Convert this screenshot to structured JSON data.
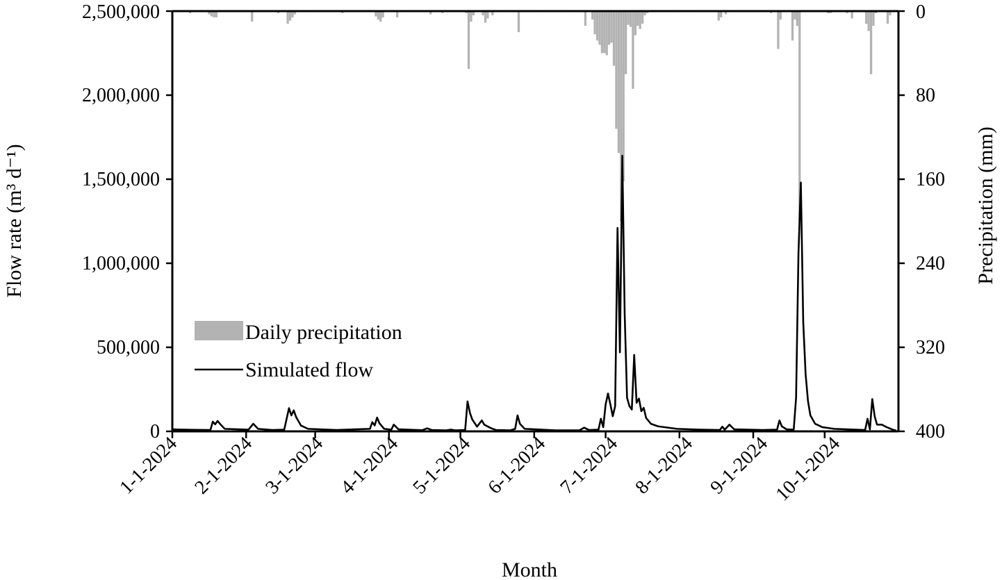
{
  "chart_data": {
    "type": "bar+line",
    "xlabel": "Month",
    "ylabel_left": "Flow rate (m³ d⁻¹)",
    "ylabel_right": "Precipitation (mm)",
    "x_start": "2024-01-01",
    "x_end": "2024-10-31",
    "ylim_left": [
      0,
      2500000
    ],
    "ylim_right": [
      0,
      400
    ],
    "right_axis_inverted": true,
    "legend_position": "left-center",
    "grid": false,
    "x_ticks": [
      "1-1-2024",
      "2-1-2024",
      "3-1-2024",
      "4-1-2024",
      "5-1-2024",
      "6-1-2024",
      "7-1-2024",
      "8-1-2024",
      "9-1-2024",
      "10-1-2024"
    ],
    "y_ticks_left": [
      "0",
      "500,000",
      "1,000,000",
      "1,500,000",
      "2,000,000",
      "2,500,000"
    ],
    "y_ticks_right": [
      "0",
      "80",
      "160",
      "240",
      "320",
      "400"
    ],
    "series": [
      {
        "name": "Daily precipitation",
        "type": "bar",
        "color": "#b3b3b3",
        "axis": "right",
        "points": [
          [
            "2024-01-03",
            1
          ],
          [
            "2024-01-06",
            1
          ],
          [
            "2024-01-08",
            2
          ],
          [
            "2024-01-13",
            1
          ],
          [
            "2024-01-16",
            3
          ],
          [
            "2024-01-17",
            5
          ],
          [
            "2024-01-18",
            6
          ],
          [
            "2024-01-19",
            6
          ],
          [
            "2024-02-03",
            10
          ],
          [
            "2024-02-14",
            2
          ],
          [
            "2024-02-18",
            12
          ],
          [
            "2024-02-19",
            9
          ],
          [
            "2024-02-20",
            6
          ],
          [
            "2024-02-21",
            3
          ],
          [
            "2024-02-22",
            1
          ],
          [
            "2024-02-26",
            1
          ],
          [
            "2024-03-12",
            2
          ],
          [
            "2024-03-26",
            5
          ],
          [
            "2024-03-27",
            8
          ],
          [
            "2024-03-28",
            10
          ],
          [
            "2024-03-29",
            6
          ],
          [
            "2024-04-04",
            6
          ],
          [
            "2024-04-08",
            1
          ],
          [
            "2024-04-18",
            3
          ],
          [
            "2024-04-23",
            2
          ],
          [
            "2024-04-28",
            1
          ],
          [
            "2024-05-03",
            2
          ],
          [
            "2024-05-04",
            55
          ],
          [
            "2024-05-05",
            10
          ],
          [
            "2024-05-06",
            4
          ],
          [
            "2024-05-10",
            4
          ],
          [
            "2024-05-11",
            11
          ],
          [
            "2024-05-12",
            7
          ],
          [
            "2024-05-14",
            4
          ],
          [
            "2024-05-16",
            1
          ],
          [
            "2024-05-24",
            1
          ],
          [
            "2024-05-25",
            20
          ],
          [
            "2024-06-02",
            1
          ],
          [
            "2024-06-17",
            1
          ],
          [
            "2024-06-22",
            14
          ],
          [
            "2024-06-25",
            8
          ],
          [
            "2024-06-26",
            22
          ],
          [
            "2024-06-27",
            28
          ],
          [
            "2024-06-28",
            32
          ],
          [
            "2024-06-29",
            40
          ],
          [
            "2024-06-30",
            40
          ],
          [
            "2024-07-01",
            42
          ],
          [
            "2024-07-02",
            32
          ],
          [
            "2024-07-03",
            30
          ],
          [
            "2024-07-04",
            52
          ],
          [
            "2024-07-05",
            112
          ],
          [
            "2024-07-06",
            135
          ],
          [
            "2024-07-07",
            200
          ],
          [
            "2024-07-08",
            162
          ],
          [
            "2024-07-09",
            60
          ],
          [
            "2024-07-10",
            13
          ],
          [
            "2024-07-11",
            15
          ],
          [
            "2024-07-12",
            74
          ],
          [
            "2024-07-13",
            23
          ],
          [
            "2024-07-14",
            14
          ],
          [
            "2024-07-15",
            17
          ],
          [
            "2024-07-16",
            12
          ],
          [
            "2024-07-17",
            4
          ],
          [
            "2024-07-18",
            2
          ],
          [
            "2024-07-20",
            1
          ],
          [
            "2024-07-25",
            1
          ],
          [
            "2024-08-02",
            1
          ],
          [
            "2024-08-07",
            1
          ],
          [
            "2024-08-17",
            9
          ],
          [
            "2024-08-18",
            6
          ],
          [
            "2024-08-20",
            3
          ],
          [
            "2024-08-22",
            1
          ],
          [
            "2024-09-05",
            1
          ],
          [
            "2024-09-08",
            2
          ],
          [
            "2024-09-11",
            36
          ],
          [
            "2024-09-12",
            8
          ],
          [
            "2024-09-17",
            28
          ],
          [
            "2024-09-18",
            8
          ],
          [
            "2024-09-19",
            14
          ],
          [
            "2024-09-20",
            200
          ],
          [
            "2024-10-02",
            2
          ],
          [
            "2024-10-03",
            2
          ],
          [
            "2024-10-05",
            1
          ],
          [
            "2024-10-10",
            2
          ],
          [
            "2024-10-12",
            7
          ],
          [
            "2024-10-18",
            12
          ],
          [
            "2024-10-19",
            19
          ],
          [
            "2024-10-20",
            60
          ],
          [
            "2024-10-21",
            14
          ],
          [
            "2024-10-22",
            2
          ],
          [
            "2024-10-26",
            1
          ],
          [
            "2024-10-27",
            12
          ],
          [
            "2024-10-28",
            4
          ]
        ]
      },
      {
        "name": "Simulated flow",
        "type": "line",
        "color": "#000000",
        "axis": "left",
        "points": [
          [
            "2024-01-01",
            12000
          ],
          [
            "2024-01-10",
            9000
          ],
          [
            "2024-01-17",
            8000
          ],
          [
            "2024-01-18",
            58000
          ],
          [
            "2024-01-19",
            42000
          ],
          [
            "2024-01-20",
            62000
          ],
          [
            "2024-01-21",
            45000
          ],
          [
            "2024-01-23",
            15000
          ],
          [
            "2024-02-02",
            10000
          ],
          [
            "2024-02-04",
            45000
          ],
          [
            "2024-02-06",
            15000
          ],
          [
            "2024-02-12",
            8000
          ],
          [
            "2024-02-17",
            10000
          ],
          [
            "2024-02-19",
            138000
          ],
          [
            "2024-02-20",
            95000
          ],
          [
            "2024-02-21",
            125000
          ],
          [
            "2024-02-22",
            85000
          ],
          [
            "2024-02-24",
            35000
          ],
          [
            "2024-02-27",
            15000
          ],
          [
            "2024-03-10",
            8000
          ],
          [
            "2024-03-24",
            15000
          ],
          [
            "2024-03-25",
            55000
          ],
          [
            "2024-03-26",
            35000
          ],
          [
            "2024-03-27",
            82000
          ],
          [
            "2024-03-28",
            48000
          ],
          [
            "2024-03-30",
            15000
          ],
          [
            "2024-04-02",
            10000
          ],
          [
            "2024-04-03",
            40000
          ],
          [
            "2024-04-05",
            12000
          ],
          [
            "2024-04-15",
            7000
          ],
          [
            "2024-04-17",
            18000
          ],
          [
            "2024-04-19",
            8000
          ],
          [
            "2024-04-25",
            6000
          ],
          [
            "2024-04-27",
            10000
          ],
          [
            "2024-04-29",
            6000
          ],
          [
            "2024-05-03",
            8000
          ],
          [
            "2024-05-04",
            178000
          ],
          [
            "2024-05-05",
            110000
          ],
          [
            "2024-05-06",
            70000
          ],
          [
            "2024-05-08",
            28000
          ],
          [
            "2024-05-10",
            65000
          ],
          [
            "2024-05-11",
            40000
          ],
          [
            "2024-05-13",
            25000
          ],
          [
            "2024-05-14",
            18000
          ],
          [
            "2024-05-16",
            8000
          ],
          [
            "2024-05-22",
            6000
          ],
          [
            "2024-05-24",
            15000
          ],
          [
            "2024-05-25",
            95000
          ],
          [
            "2024-05-26",
            45000
          ],
          [
            "2024-05-28",
            15000
          ],
          [
            "2024-06-10",
            6000
          ],
          [
            "2024-06-20",
            6000
          ],
          [
            "2024-06-22",
            22000
          ],
          [
            "2024-06-24",
            8000
          ],
          [
            "2024-06-28",
            10000
          ],
          [
            "2024-06-29",
            75000
          ],
          [
            "2024-06-30",
            25000
          ],
          [
            "2024-07-01",
            160000
          ],
          [
            "2024-07-02",
            225000
          ],
          [
            "2024-07-03",
            160000
          ],
          [
            "2024-07-04",
            90000
          ],
          [
            "2024-07-05",
            150000
          ],
          [
            "2024-07-06",
            1210000
          ],
          [
            "2024-07-07",
            470000
          ],
          [
            "2024-07-08",
            1640000
          ],
          [
            "2024-07-09",
            700000
          ],
          [
            "2024-07-10",
            200000
          ],
          [
            "2024-07-11",
            150000
          ],
          [
            "2024-07-12",
            130000
          ],
          [
            "2024-07-13",
            455000
          ],
          [
            "2024-07-14",
            170000
          ],
          [
            "2024-07-15",
            195000
          ],
          [
            "2024-07-16",
            120000
          ],
          [
            "2024-07-17",
            140000
          ],
          [
            "2024-07-18",
            80000
          ],
          [
            "2024-07-20",
            45000
          ],
          [
            "2024-07-23",
            30000
          ],
          [
            "2024-07-31",
            15000
          ],
          [
            "2024-08-10",
            10000
          ],
          [
            "2024-08-18",
            8000
          ],
          [
            "2024-08-19",
            28000
          ],
          [
            "2024-08-20",
            10000
          ],
          [
            "2024-08-22",
            40000
          ],
          [
            "2024-08-24",
            12000
          ],
          [
            "2024-09-05",
            8000
          ],
          [
            "2024-09-11",
            10000
          ],
          [
            "2024-09-12",
            65000
          ],
          [
            "2024-09-13",
            30000
          ],
          [
            "2024-09-15",
            12000
          ],
          [
            "2024-09-18",
            10000
          ],
          [
            "2024-09-19",
            200000
          ],
          [
            "2024-09-20",
            1060000
          ],
          [
            "2024-09-21",
            1480000
          ],
          [
            "2024-09-22",
            650000
          ],
          [
            "2024-09-23",
            340000
          ],
          [
            "2024-09-24",
            180000
          ],
          [
            "2024-09-25",
            95000
          ],
          [
            "2024-09-27",
            45000
          ],
          [
            "2024-09-30",
            25000
          ],
          [
            "2024-10-05",
            15000
          ],
          [
            "2024-10-18",
            8000
          ],
          [
            "2024-10-19",
            75000
          ],
          [
            "2024-10-20",
            12000
          ],
          [
            "2024-10-21",
            192000
          ],
          [
            "2024-10-22",
            90000
          ],
          [
            "2024-10-23",
            40000
          ],
          [
            "2024-10-25",
            40000
          ],
          [
            "2024-10-27",
            25000
          ],
          [
            "2024-10-30",
            8000
          ],
          [
            "2024-10-31",
            5000
          ]
        ]
      }
    ]
  }
}
